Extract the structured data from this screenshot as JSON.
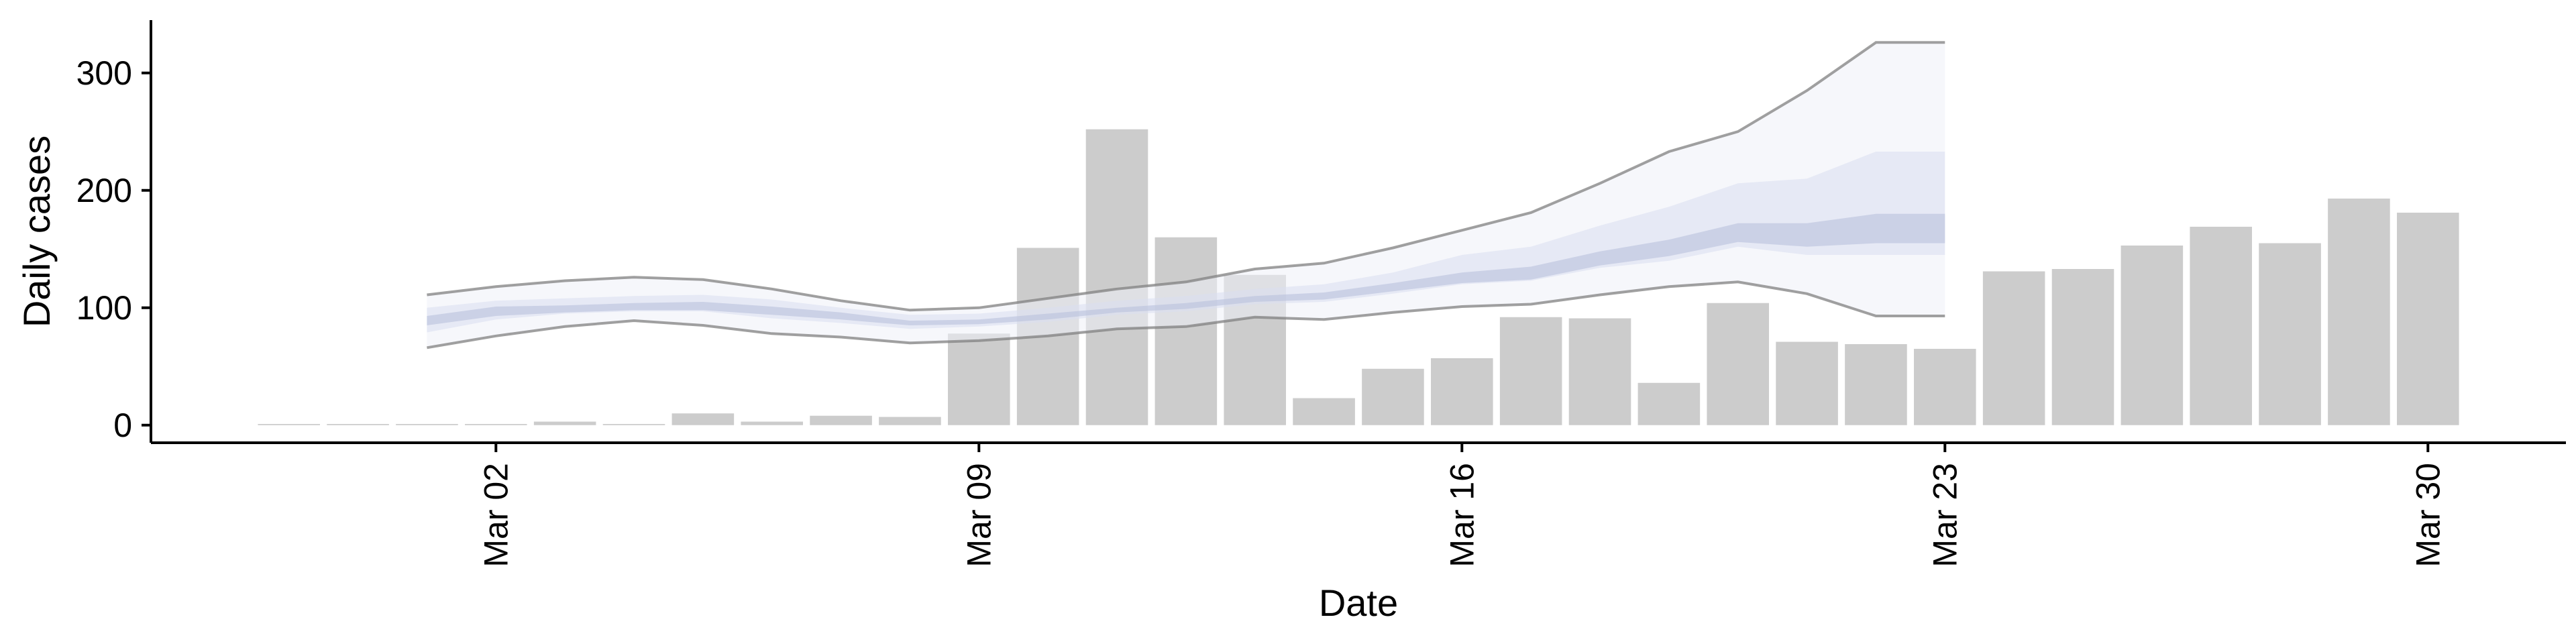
{
  "chart_data": {
    "type": "bar",
    "xlabel": "Date",
    "ylabel": "Daily cases",
    "ylim": [
      -15,
      345
    ],
    "xlim": [
      "2020-02-26",
      "2020-04-01"
    ],
    "yticks": [
      0,
      100,
      200,
      300
    ],
    "xticks": [
      {
        "date": "2020-03-02",
        "label": "Mar 02"
      },
      {
        "date": "2020-03-09",
        "label": "Mar 09"
      },
      {
        "date": "2020-03-16",
        "label": "Mar 16"
      },
      {
        "date": "2020-03-23",
        "label": "Mar 23"
      },
      {
        "date": "2020-03-30",
        "label": "Mar 30"
      }
    ],
    "grid": false,
    "legend": "none",
    "colors": {
      "bars": "#cccccc",
      "band_outer": "#eef0f7",
      "band_mid": "#d9dff0",
      "band_inner": "#b9c2dc",
      "bound_line": "#808080",
      "axis": "#000000"
    },
    "series": [
      {
        "type": "bar",
        "values": [
          {
            "x": "2020-02-28",
            "y": 1
          },
          {
            "x": "2020-02-29",
            "y": 1
          },
          {
            "x": "2020-03-01",
            "y": 1
          },
          {
            "x": "2020-03-02",
            "y": 1
          },
          {
            "x": "2020-03-03",
            "y": 3
          },
          {
            "x": "2020-03-04",
            "y": 1
          },
          {
            "x": "2020-03-05",
            "y": 10
          },
          {
            "x": "2020-03-06",
            "y": 3
          },
          {
            "x": "2020-03-07",
            "y": 8
          },
          {
            "x": "2020-03-08",
            "y": 7
          },
          {
            "x": "2020-03-09",
            "y": 78
          },
          {
            "x": "2020-03-10",
            "y": 151
          },
          {
            "x": "2020-03-11",
            "y": 252
          },
          {
            "x": "2020-03-12",
            "y": 160
          },
          {
            "x": "2020-03-13",
            "y": 128
          },
          {
            "x": "2020-03-14",
            "y": 23
          },
          {
            "x": "2020-03-15",
            "y": 48
          },
          {
            "x": "2020-03-16",
            "y": 57
          },
          {
            "x": "2020-03-17",
            "y": 92
          },
          {
            "x": "2020-03-18",
            "y": 91
          },
          {
            "x": "2020-03-19",
            "y": 36
          },
          {
            "x": "2020-03-20",
            "y": 104
          },
          {
            "x": "2020-03-21",
            "y": 71
          },
          {
            "x": "2020-03-22",
            "y": 69
          },
          {
            "x": "2020-03-23",
            "y": 65
          },
          {
            "x": "2020-03-24",
            "y": 131
          },
          {
            "x": "2020-03-25",
            "y": 133
          },
          {
            "x": "2020-03-26",
            "y": 153
          },
          {
            "x": "2020-03-27",
            "y": 169
          },
          {
            "x": "2020-03-28",
            "y": 155
          },
          {
            "x": "2020-03-29",
            "y": 193
          },
          {
            "x": "2020-03-30",
            "y": 181
          }
        ]
      },
      {
        "type": "area",
        "role": "estimate band",
        "x": [
          "2020-03-01",
          "2020-03-02",
          "2020-03-03",
          "2020-03-04",
          "2020-03-05",
          "2020-03-06",
          "2020-03-07",
          "2020-03-08",
          "2020-03-09",
          "2020-03-10",
          "2020-03-11",
          "2020-03-12",
          "2020-03-13",
          "2020-03-14",
          "2020-03-15",
          "2020-03-16",
          "2020-03-17",
          "2020-03-18",
          "2020-03-19",
          "2020-03-20",
          "2020-03-21",
          "2020-03-22",
          "2020-03-23"
        ],
        "upper": [
          111,
          118,
          123,
          126,
          124,
          116,
          106,
          98,
          100,
          108,
          116,
          122,
          133,
          138,
          151,
          166,
          181,
          206,
          233,
          250,
          285,
          326,
          326
        ],
        "lower": [
          66,
          76,
          84,
          89,
          85,
          78,
          75,
          70,
          72,
          76,
          82,
          84,
          92,
          90,
          96,
          101,
          103,
          111,
          118,
          122,
          112,
          93,
          93
        ],
        "mid_upper": [
          100,
          106,
          108,
          110,
          111,
          107,
          100,
          94,
          95,
          100,
          106,
          110,
          116,
          120,
          130,
          145,
          152,
          170,
          186,
          206,
          210,
          233,
          233
        ],
        "mid_lower": [
          79,
          90,
          95,
          97,
          97,
          91,
          87,
          82,
          84,
          88,
          94,
          97,
          103,
          105,
          112,
          120,
          123,
          134,
          140,
          152,
          145,
          145,
          145
        ],
        "inner_upper": [
          93,
          101,
          102,
          104,
          105,
          101,
          96,
          89,
          90,
          95,
          100,
          104,
          110,
          113,
          121,
          130,
          135,
          148,
          158,
          172,
          172,
          180,
          180
        ],
        "inner_lower": [
          85,
          93,
          96,
          98,
          98,
          94,
          90,
          85,
          86,
          90,
          96,
          99,
          105,
          107,
          114,
          121,
          124,
          136,
          144,
          156,
          152,
          155,
          155
        ]
      }
    ]
  }
}
